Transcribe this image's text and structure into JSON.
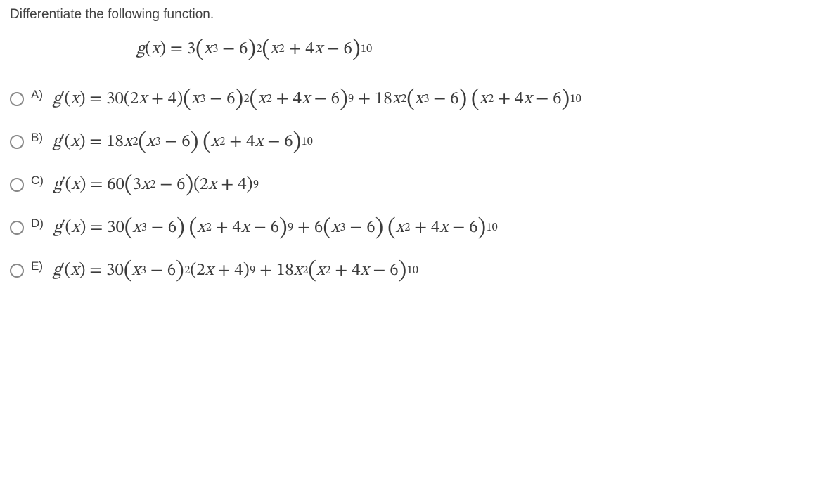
{
  "prompt": "Differentiate the following function.",
  "main_equation": {
    "lhs": "g(x) = 3",
    "parts": [
      "(x³ − 6)²",
      "(x² + 4x − 6)¹⁰"
    ],
    "fontsize": 26
  },
  "letters": [
    "A)",
    "B)",
    "C)",
    "D)",
    "E)"
  ],
  "options": {
    "A": "g′(x) = 30(2x + 4)(x³ − 6)²(x² + 4x − 6)⁹ + 18x²(x³ − 6)(x² + 4x − 6)¹⁰",
    "B": "g′(x) = 18x²(x³ − 6)(x² + 4x − 6)¹⁰",
    "C": "g′(x) = 60(3x² − 6)(2x + 4)⁹",
    "D": "g′(x) = 30(x³ − 6)(x² + 4x − 6)⁹ + 6(x³ − 6)(x² + 4x − 6)¹⁰",
    "E": "g′(x) = 30(x³ − 6)²(2x + 4)⁹ + 18x²(x² + 4x − 6)¹⁰"
  },
  "styling": {
    "body_font": "Segoe UI / Arial",
    "math_font": "Cambria Math / serif",
    "text_color": "#3b3b3b",
    "radio_border": "#888888",
    "background": "#ffffff",
    "option_fontsize": 25,
    "row_gap": 30
  }
}
